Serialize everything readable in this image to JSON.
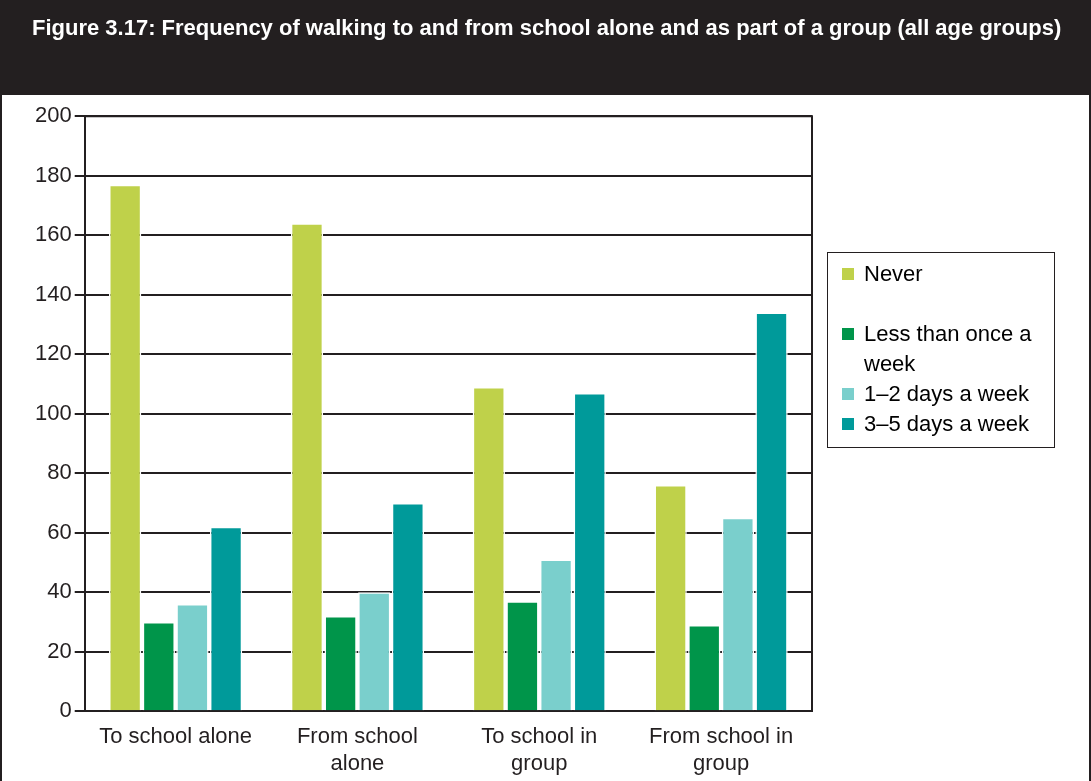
{
  "chart_data": {
    "type": "bar",
    "title": "Figure 3.17:  Frequency of walking to and from school alone and as part of a group (all age groups)",
    "categories": [
      "To school alone",
      "From school alone",
      "To school in group",
      "From school in group"
    ],
    "series": [
      {
        "name": "Never",
        "color": "#bfd14a",
        "values": [
          177,
          164,
          109,
          76
        ]
      },
      {
        "name": "Less than once a week",
        "color": "#00954a",
        "values": [
          30,
          32,
          37,
          29
        ]
      },
      {
        "name": "1–2 days a week",
        "color": "#7acfcc",
        "values": [
          36,
          40,
          51,
          65
        ]
      },
      {
        "name": "3–5 days a week",
        "color": "#009a9a",
        "values": [
          62,
          70,
          107,
          134
        ]
      }
    ],
    "ylim": [
      0,
      200
    ],
    "yticks": [
      0,
      20,
      40,
      60,
      80,
      100,
      120,
      140,
      160,
      180,
      200
    ],
    "grid": "y",
    "legend": "right"
  }
}
